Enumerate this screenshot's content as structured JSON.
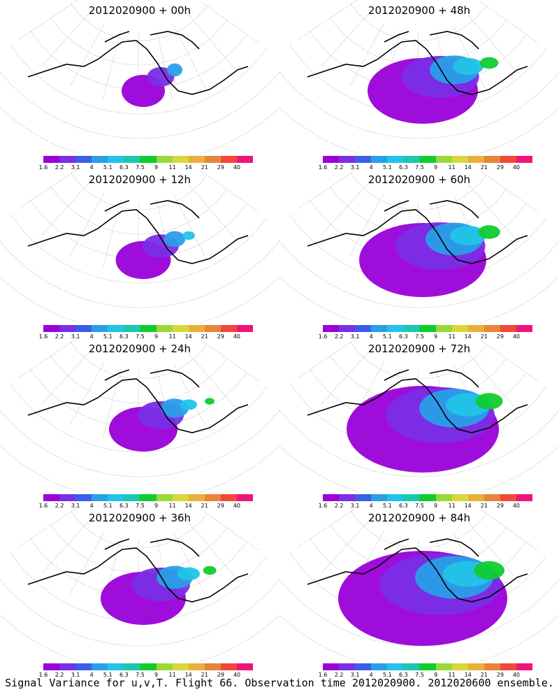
{
  "caption": "Signal Variance for u,v,T. Flight 66. Observation time 2012020900. 2012020600 ensemble.",
  "colorbar": {
    "colors": [
      "#9a00d8",
      "#7a2ee6",
      "#3a5ee8",
      "#2a9ee8",
      "#22c4e8",
      "#1ac8b0",
      "#10cc30",
      "#9ad83a",
      "#d8d83a",
      "#e8b03a",
      "#e8843a",
      "#f0483a",
      "#f0147a"
    ],
    "ticks": [
      "1.6",
      "2.2",
      "3.1",
      "4",
      "5.1",
      "6.3",
      "7.5",
      "9",
      "11",
      "14",
      "21",
      "29",
      "40"
    ]
  },
  "panels": [
    {
      "title": "2012020900  + 00h",
      "lead_hours": 0,
      "coverage": 0.05
    },
    {
      "title": "2012020900  + 48h",
      "lead_hours": 48,
      "coverage": 0.45
    },
    {
      "title": "2012020900  + 12h",
      "lead_hours": 12,
      "coverage": 0.12
    },
    {
      "title": "2012020900  + 60h",
      "lead_hours": 60,
      "coverage": 0.55
    },
    {
      "title": "2012020900  + 24h",
      "lead_hours": 24,
      "coverage": 0.2
    },
    {
      "title": "2012020900  + 72h",
      "lead_hours": 72,
      "coverage": 0.7
    },
    {
      "title": "2012020900  + 36h",
      "lead_hours": 36,
      "coverage": 0.3
    },
    {
      "title": "2012020900  + 84h",
      "lead_hours": 84,
      "coverage": 0.8
    }
  ]
}
